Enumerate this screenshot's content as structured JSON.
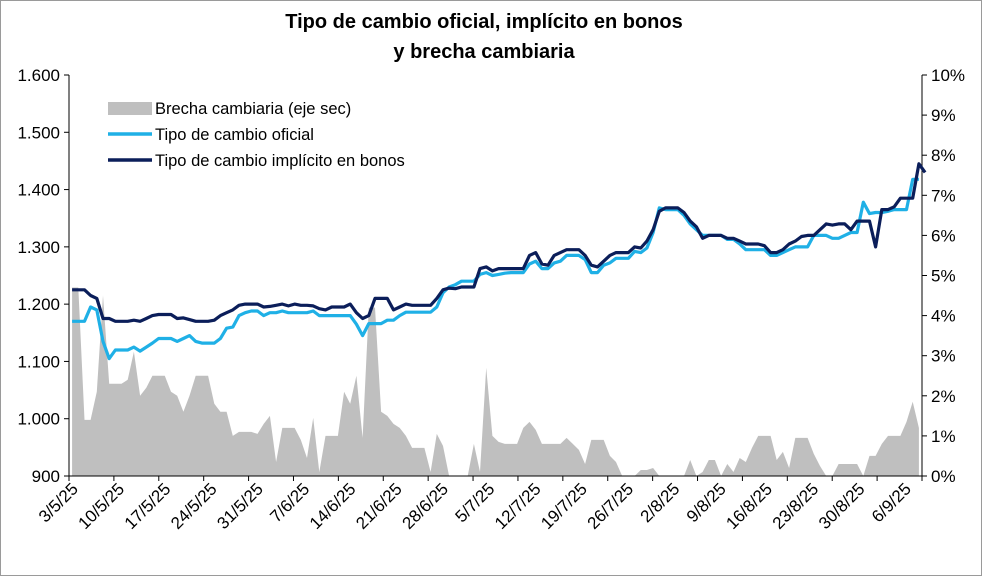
{
  "chart_data": {
    "type": "line",
    "title": "Tipo de cambio oficial, implícito en bonos",
    "subtitle": "y brecha cambiaria",
    "x_tick_labels": [
      "3/5/25",
      "10/5/25",
      "17/5/25",
      "24/5/25",
      "31/5/25",
      "7/6/25",
      "14/6/25",
      "21/6/25",
      "28/6/25",
      "5/7/25",
      "12/7/25",
      "19/7/25",
      "26/7/25",
      "2/8/25",
      "9/8/25",
      "16/8/25",
      "23/8/25",
      "30/8/25",
      "6/9/25"
    ],
    "y_left": {
      "ticks": [
        "900",
        "1.000",
        "1.100",
        "1.200",
        "1.300",
        "1.400",
        "1.500",
        "1.600"
      ],
      "range": [
        900,
        1600
      ]
    },
    "y_right": {
      "ticks": [
        "0%",
        "1%",
        "2%",
        "3%",
        "4%",
        "5%",
        "6%",
        "7%",
        "8%",
        "9%",
        "10%"
      ],
      "range": [
        0,
        10
      ]
    },
    "legend_position": "top-left",
    "series": [
      {
        "name": "Brecha cambiaria (eje sec)",
        "axis": "right",
        "kind": "area",
        "color": "#bfbfbf",
        "values": [
          4.7,
          4.7,
          1.4,
          1.4,
          2.1,
          4.5,
          2.3,
          2.3,
          2.3,
          2.4,
          3.1,
          2.0,
          2.2,
          2.5,
          2.5,
          2.5,
          2.1,
          2.0,
          1.6,
          2.0,
          2.5,
          2.5,
          2.5,
          1.8,
          1.6,
          1.6,
          1.0,
          1.1,
          1.1,
          1.1,
          1.05,
          1.3,
          1.5,
          0.35,
          1.2,
          1.2,
          1.2,
          0.9,
          0.45,
          1.45,
          0.1,
          1.0,
          1.0,
          1.0,
          2.1,
          1.8,
          2.5,
          0.95,
          4.2,
          4.2,
          1.6,
          1.5,
          1.3,
          1.2,
          1.0,
          0.7,
          0.7,
          0.7,
          0.1,
          1.05,
          0.75,
          0.0,
          0.0,
          0.0,
          0.0,
          0.8,
          0.1,
          2.7,
          1.0,
          0.85,
          0.8,
          0.8,
          0.8,
          1.2,
          1.35,
          1.15,
          0.8,
          0.8,
          0.8,
          0.8,
          0.95,
          0.8,
          0.65,
          0.3,
          0.9,
          0.9,
          0.9,
          0.5,
          0.35,
          0.0,
          0.0,
          0.0,
          0.15,
          0.15,
          0.2,
          0.0,
          0.0,
          0.0,
          0.0,
          0.0,
          0.4,
          0.0,
          0.1,
          0.4,
          0.4,
          0.0,
          0.3,
          0.1,
          0.45,
          0.35,
          0.7,
          1.0,
          1.0,
          1.0,
          0.4,
          0.6,
          0.2,
          0.95,
          0.95,
          0.95,
          0.55,
          0.25,
          0.0,
          0.0,
          0.3,
          0.3,
          0.3,
          0.3,
          0.0,
          0.5,
          0.5,
          0.8,
          1.0,
          1.0,
          1.0,
          1.35,
          1.85,
          1.2
        ]
      },
      {
        "name": "Tipo de cambio oficial",
        "axis": "left",
        "kind": "line",
        "color": "#1fb0e6",
        "values": [
          1170,
          1170,
          1170,
          1195,
          1190,
          1135,
          1105,
          1120,
          1120,
          1120,
          1125,
          1118,
          1125,
          1132,
          1140,
          1140,
          1140,
          1135,
          1140,
          1145,
          1135,
          1132,
          1132,
          1132,
          1140,
          1158,
          1160,
          1180,
          1185,
          1188,
          1188,
          1180,
          1185,
          1185,
          1188,
          1185,
          1185,
          1185,
          1185,
          1188,
          1180,
          1180,
          1180,
          1180,
          1180,
          1180,
          1165,
          1145,
          1166,
          1166,
          1166,
          1172,
          1172,
          1180,
          1186,
          1186,
          1186,
          1186,
          1186,
          1195,
          1220,
          1230,
          1234,
          1240,
          1240,
          1240,
          1252,
          1255,
          1250,
          1252,
          1254,
          1255,
          1255,
          1255,
          1270,
          1275,
          1262,
          1262,
          1272,
          1275,
          1285,
          1285,
          1285,
          1278,
          1255,
          1255,
          1268,
          1272,
          1280,
          1280,
          1280,
          1292,
          1290,
          1298,
          1325,
          1368,
          1365,
          1365,
          1365,
          1355,
          1340,
          1330,
          1320,
          1320,
          1320,
          1320,
          1313,
          1313,
          1305,
          1295,
          1295,
          1295,
          1295,
          1285,
          1285,
          1290,
          1295,
          1300,
          1300,
          1300,
          1320,
          1320,
          1320,
          1315,
          1315,
          1320,
          1325,
          1325,
          1378,
          1358,
          1360,
          1360,
          1362,
          1365,
          1365,
          1365,
          1418,
          1418
        ]
      },
      {
        "name": "Tipo de cambio implícito en bonos",
        "axis": "left",
        "kind": "line",
        "color": "#0b1e5a",
        "values": [
          1225,
          1225,
          1225,
          1215,
          1210,
          1175,
          1175,
          1170,
          1170,
          1170,
          1172,
          1170,
          1175,
          1180,
          1182,
          1182,
          1182,
          1175,
          1176,
          1173,
          1170,
          1170,
          1170,
          1172,
          1180,
          1185,
          1190,
          1198,
          1200,
          1200,
          1200,
          1195,
          1196,
          1198,
          1200,
          1197,
          1200,
          1198,
          1198,
          1197,
          1192,
          1190,
          1195,
          1195,
          1195,
          1200,
          1185,
          1175,
          1180,
          1210,
          1210,
          1210,
          1190,
          1195,
          1200,
          1198,
          1198,
          1198,
          1198,
          1210,
          1225,
          1228,
          1227,
          1230,
          1230,
          1230,
          1262,
          1265,
          1258,
          1262,
          1262,
          1262,
          1262,
          1262,
          1285,
          1290,
          1270,
          1268,
          1285,
          1290,
          1295,
          1295,
          1295,
          1285,
          1268,
          1265,
          1275,
          1285,
          1290,
          1290,
          1290,
          1300,
          1298,
          1310,
          1330,
          1362,
          1368,
          1368,
          1368,
          1360,
          1345,
          1335,
          1315,
          1320,
          1320,
          1320,
          1315,
          1315,
          1310,
          1305,
          1305,
          1305,
          1302,
          1290,
          1290,
          1295,
          1305,
          1310,
          1318,
          1320,
          1320,
          1330,
          1340,
          1338,
          1340,
          1340,
          1330,
          1345,
          1345,
          1345,
          1300,
          1365,
          1365,
          1370,
          1385,
          1385,
          1385,
          1445,
          1430
        ]
      }
    ]
  }
}
